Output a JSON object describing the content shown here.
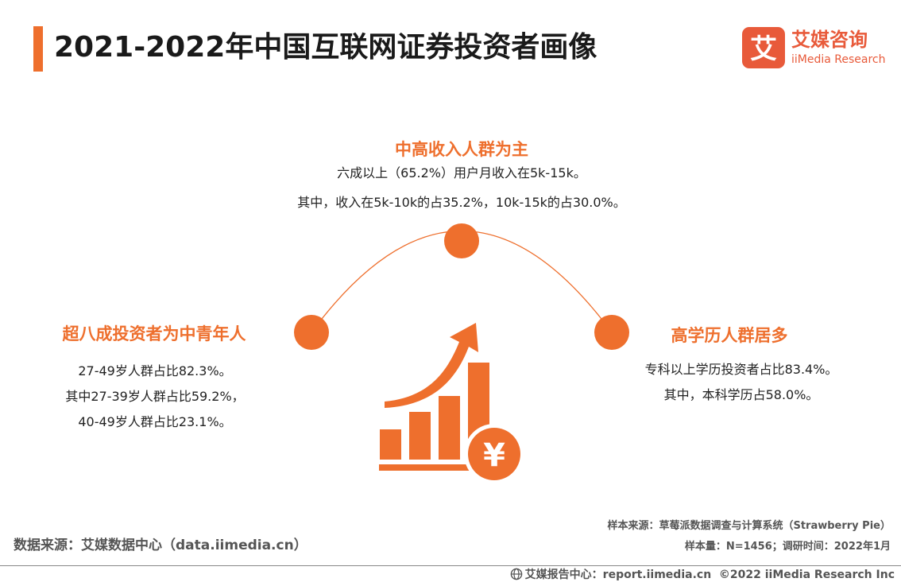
{
  "header": {
    "title": "2021-2022年中国互联网证券投资者画像"
  },
  "logo": {
    "name": "艾媒咨询",
    "subtitle": "iiMedia Research",
    "mark": "艾"
  },
  "center_point": {
    "heading": "中高收入人群为主",
    "lines": [
      "六成以上（65.2%）用户月收入在5k-15k。",
      "其中，收入在5k-10k的占35.2%，10k-15k的占30.0%。"
    ]
  },
  "left_point": {
    "heading": "超八成投资者为中青年人",
    "lines": [
      "27-49岁人群占比82.3%。",
      "其中27-39岁人群占比59.2%，",
      "40-49岁人群占比23.1%。"
    ]
  },
  "right_point": {
    "heading": "高学历人群居多",
    "lines": [
      "专科以上学历投资者占比83.4%。",
      "其中，本科学历占58.0%。"
    ]
  },
  "graphic": {
    "currency_symbol": "¥",
    "icon": "bar-chart-growth-icon",
    "coin_icon": "yuan-coin-icon"
  },
  "footer": {
    "data_source": "数据来源：艾媒数据中心（data.iimedia.cn）",
    "sample_source": "样本来源：草莓派数据调查与计算系统（Strawberry Pie）",
    "sample_size": "样本量：N=1456；调研时间：2022年1月",
    "report_center": "艾媒报告中心：report.iimedia.cn",
    "copyright": "©2022  iiMedia Research  Inc"
  },
  "colors": {
    "accent": "#ee6f2d",
    "logo": "#e85a3a",
    "text": "#222222",
    "footer_text": "#555555"
  }
}
